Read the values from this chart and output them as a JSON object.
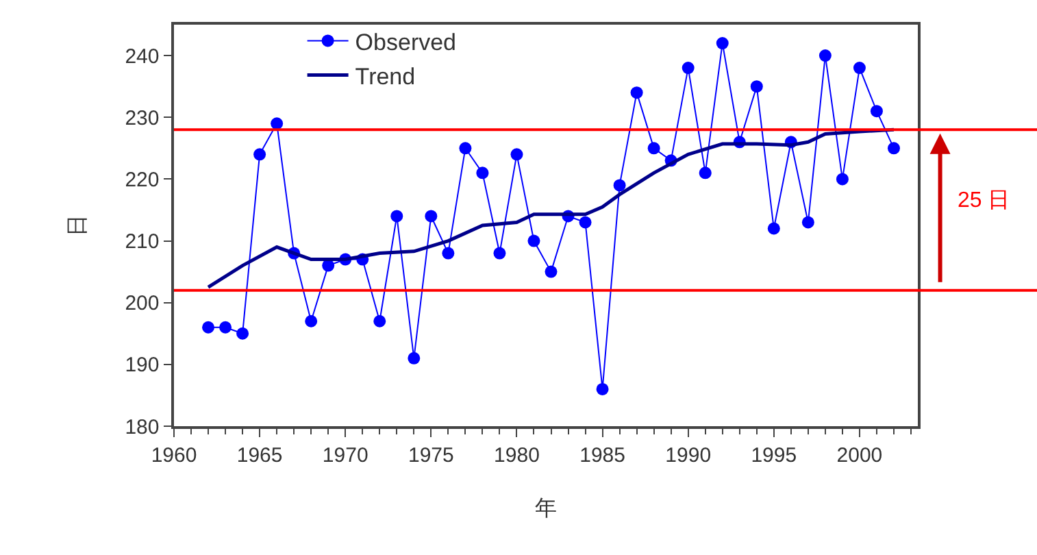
{
  "chart_data": {
    "type": "line",
    "xlabel": "年",
    "ylabel": "日",
    "xlim": [
      1960,
      2003.4
    ],
    "xticks": [
      1960,
      1965,
      1970,
      1975,
      1980,
      1985,
      1990,
      1995,
      2000
    ],
    "ylim": [
      180,
      245
    ],
    "yticks": [
      180,
      190,
      200,
      210,
      220,
      230,
      240
    ],
    "grid": false,
    "legend": "top",
    "series": [
      {
        "name": "Observed",
        "color": "#0000ff",
        "marker": "circle",
        "x": [
          1962,
          1963,
          1964,
          1965,
          1966,
          1967,
          1968,
          1969,
          1970,
          1971,
          1972,
          1973,
          1974,
          1975,
          1976,
          1977,
          1978,
          1979,
          1980,
          1981,
          1982,
          1983,
          1984,
          1985,
          1986,
          1987,
          1988,
          1989,
          1990,
          1991,
          1992,
          1993,
          1994,
          1995,
          1996,
          1997,
          1998,
          1999,
          2000,
          2001,
          2002
        ],
        "values": [
          196,
          196,
          195,
          224,
          229,
          208,
          197,
          206,
          207,
          207,
          197,
          214,
          191,
          214,
          208,
          225,
          221,
          208,
          224,
          210,
          205,
          214,
          213,
          186,
          219,
          234,
          225,
          223,
          238,
          221,
          242,
          226,
          235,
          212,
          226,
          213,
          240,
          220,
          238,
          231,
          225
        ]
      },
      {
        "name": "Trend",
        "color": "#00008b",
        "marker": "none",
        "x": [
          1962,
          1964,
          1966,
          1968,
          1970,
          1972,
          1974,
          1976,
          1978,
          1980,
          1981,
          1984,
          1985,
          1986,
          1988,
          1990,
          1992,
          1994,
          1996,
          1997,
          1998,
          2000,
          2002
        ],
        "values": [
          202.5,
          206,
          209,
          207,
          207,
          208,
          208.3,
          210,
          212.5,
          213,
          214.3,
          214.3,
          215.5,
          217.5,
          221,
          224,
          225.7,
          225.7,
          225.5,
          226,
          227.3,
          227.7,
          228
        ]
      }
    ],
    "ref_lines": [
      {
        "axis": "y",
        "value": 202,
        "color": "#ff0000"
      },
      {
        "axis": "y",
        "value": 228,
        "color": "#ff0000"
      }
    ],
    "annotations": [
      "25 日"
    ]
  }
}
